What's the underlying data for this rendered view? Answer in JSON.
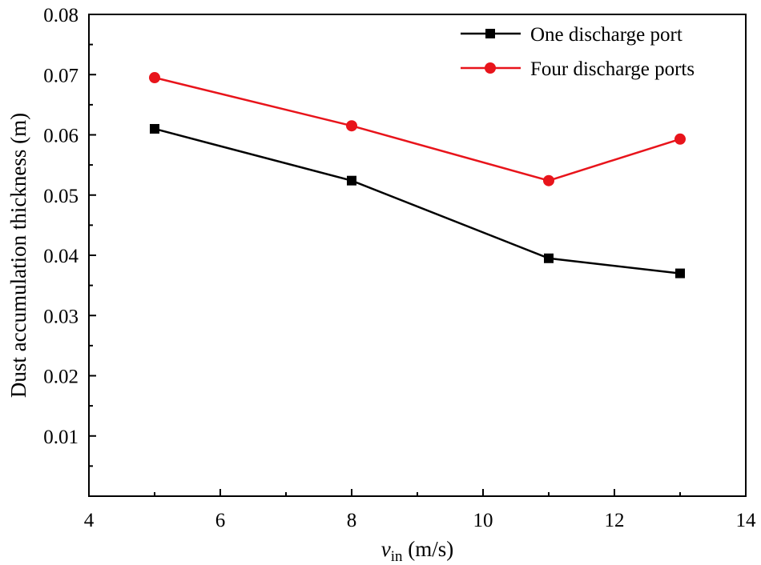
{
  "chart_data": {
    "type": "line",
    "title": "",
    "xlabel": "v",
    "xlabel_sub": "in",
    "xlabel_unit": " (m/s)",
    "ylabel": "Dust accumulation thickness (m)",
    "xlim": [
      4,
      14
    ],
    "ylim": [
      0,
      0.08
    ],
    "x_ticks": [
      4,
      6,
      8,
      10,
      12,
      14
    ],
    "y_ticks": [
      0.01,
      0.02,
      0.03,
      0.04,
      0.05,
      0.06,
      0.07,
      0.08
    ],
    "x_tick_labels": [
      "4",
      "6",
      "8",
      "10",
      "12",
      "14"
    ],
    "y_tick_labels": [
      "0.01",
      "0.02",
      "0.03",
      "0.04",
      "0.05",
      "0.06",
      "0.07",
      "0.08"
    ],
    "grid": false,
    "legend_position": "top-right",
    "series": [
      {
        "name": "One discharge port",
        "color": "#000000",
        "marker": "square",
        "x": [
          5,
          8,
          11,
          13
        ],
        "y": [
          0.061,
          0.0524,
          0.0395,
          0.037
        ]
      },
      {
        "name": "Four discharge ports",
        "color": "#e8141b",
        "marker": "circle",
        "x": [
          5,
          8,
          11,
          13
        ],
        "y": [
          0.0695,
          0.0615,
          0.0524,
          0.0593
        ]
      }
    ]
  }
}
